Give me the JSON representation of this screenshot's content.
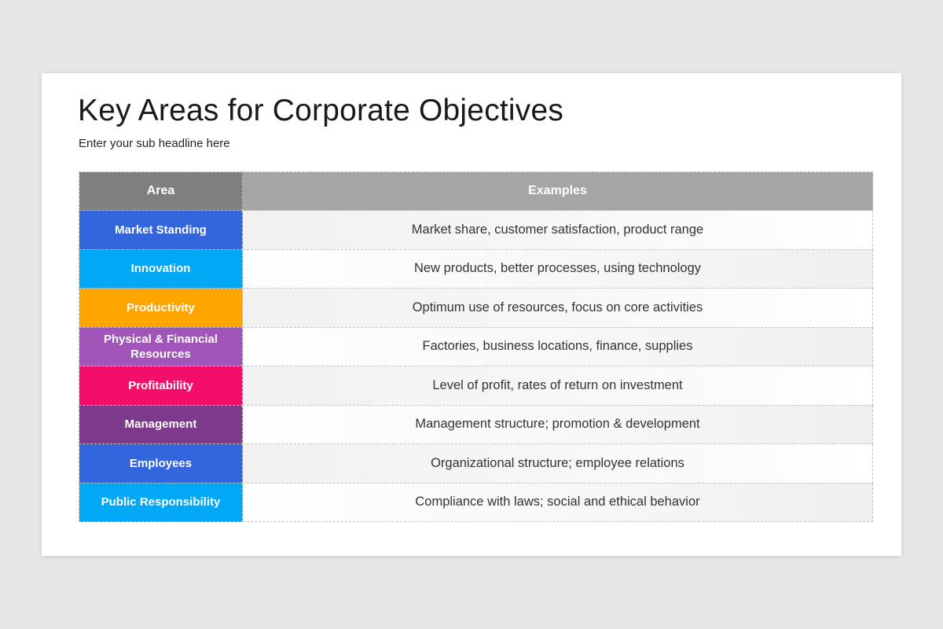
{
  "slide": {
    "title": "Key Areas for Corporate Objectives",
    "subtitle": "Enter your sub headline here"
  },
  "table": {
    "headers": {
      "area": "Area",
      "examples": "Examples"
    },
    "header_colors": {
      "area": "#7f7f7f",
      "examples": "#a5a5a5"
    },
    "rows": [
      {
        "area": "Market Standing",
        "examples": "Market share, customer satisfaction, product range",
        "color": "#3366dd"
      },
      {
        "area": "Innovation",
        "examples": "New products, better processes, using technology",
        "color": "#00a8f5"
      },
      {
        "area": "Productivity",
        "examples": "Optimum use of resources, focus on core activities",
        "color": "#ffa500"
      },
      {
        "area": "Physical & Financial Resources",
        "examples": "Factories, business locations, finance, supplies",
        "color": "#a155b9"
      },
      {
        "area": "Profitability",
        "examples": "Level of profit, rates of return on investment",
        "color": "#f50d6a"
      },
      {
        "area": "Management",
        "examples": "Management structure; promotion & development",
        "color": "#7d3a8c"
      },
      {
        "area": "Employees",
        "examples": "Organizational structure; employee relations",
        "color": "#3366dd"
      },
      {
        "area": "Public Responsibility",
        "examples": "Compliance with laws; social and ethical behavior",
        "color": "#00a8f5"
      }
    ]
  }
}
